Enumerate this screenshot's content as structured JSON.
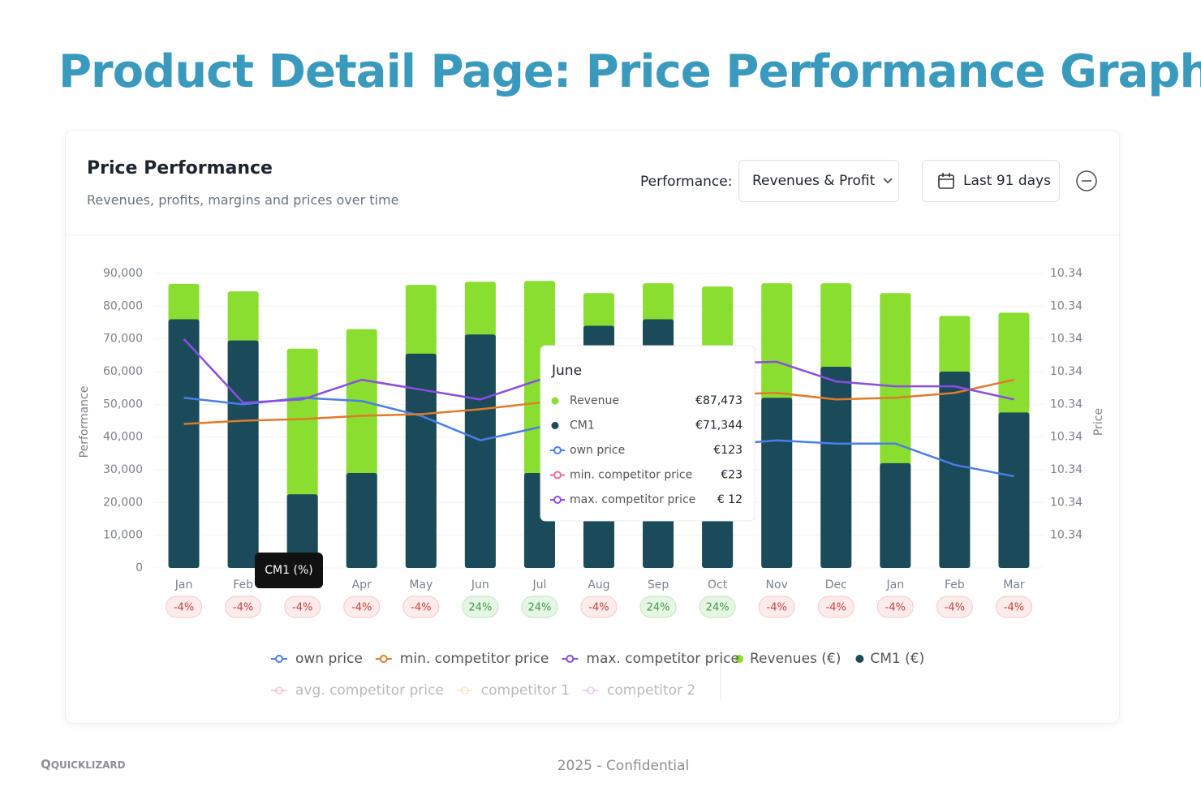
{
  "slide_title": "Product Detail Page: Price Performance Graph",
  "card": {
    "title": "Price Performance",
    "subtitle": "Revenues, profits, margins and prices over time",
    "performance_label": "Performance:",
    "performance_select": "Revenues & Profit",
    "date_range": "Last 91 days"
  },
  "footer": {
    "brand": "QUICKLIZARD",
    "note": "2025 - Confidential"
  },
  "chart_data": {
    "type": "combo",
    "ylabel": "Performance",
    "y2label": "Price",
    "categories": [
      "Jan",
      "Feb",
      "Mar",
      "Apr",
      "May",
      "Jun",
      "Jul",
      "Aug",
      "Sep",
      "Oct",
      "Nov",
      "Dec",
      "Jan",
      "Feb",
      "Mar"
    ],
    "ylim": [
      0,
      90000
    ],
    "yticks": [
      {
        "value": 0,
        "label": "0"
      },
      {
        "value": 10000,
        "label": "10,000"
      },
      {
        "value": 20000,
        "label": "20,000"
      },
      {
        "value": 30000,
        "label": "30,000"
      },
      {
        "value": 40000,
        "label": "40,000"
      },
      {
        "value": 50000,
        "label": "50,000"
      },
      {
        "value": 60000,
        "label": "60,000"
      },
      {
        "value": 70000,
        "label": "70,000"
      },
      {
        "value": 80000,
        "label": "80,000"
      },
      {
        "value": 90000,
        "label": "90,000"
      }
    ],
    "y2lim": [
      0,
      90000
    ],
    "y2ticks": [
      {
        "value": 10000,
        "label": "10.34"
      },
      {
        "value": 20000,
        "label": "10.34"
      },
      {
        "value": 30000,
        "label": "10.34"
      },
      {
        "value": 40000,
        "label": "10.34"
      },
      {
        "value": 50000,
        "label": "10.34"
      },
      {
        "value": 60000,
        "label": "10.34"
      },
      {
        "value": 70000,
        "label": "10.34"
      },
      {
        "value": 80000,
        "label": "10.34"
      },
      {
        "value": 90000,
        "label": "10.34"
      }
    ],
    "series": [
      {
        "name": "Revenues (€)",
        "type": "bar",
        "color": "#8ade2f",
        "values": [
          86800,
          84500,
          67000,
          73000,
          86500,
          87473,
          87700,
          84000,
          87000,
          86000,
          87000,
          87000,
          84000,
          77000,
          78000
        ]
      },
      {
        "name": "CM1 (€)",
        "type": "bar",
        "color": "#1b4a5a",
        "values": [
          76000,
          69500,
          22500,
          29000,
          65500,
          71344,
          29000,
          74000,
          76000,
          45000,
          52000,
          61500,
          32000,
          60000,
          47500
        ]
      },
      {
        "name": "own price",
        "type": "line",
        "axis": "y2",
        "color": "#4a7ee8",
        "values": [
          52000,
          50000,
          52000,
          51000,
          46500,
          39000,
          43000,
          42000,
          41000,
          37500,
          39000,
          38000,
          38000,
          31500,
          28000
        ]
      },
      {
        "name": "min. competitor price",
        "type": "line",
        "axis": "y2",
        "color": "#e07b2a",
        "values": [
          44000,
          45000,
          45500,
          46500,
          47000,
          48500,
          50500,
          51500,
          52000,
          53000,
          53500,
          51500,
          52000,
          53500,
          57500
        ]
      },
      {
        "name": "max. competitor price",
        "type": "line",
        "axis": "y2",
        "color": "#8a4ee0",
        "values": [
          70000,
          50500,
          51500,
          57500,
          54500,
          51500,
          57500,
          63000,
          63000,
          62500,
          63000,
          57000,
          55500,
          55500,
          51500
        ]
      }
    ],
    "legend_hidden": [
      {
        "name": "avg. competitor price",
        "color": "#e8a0c0"
      },
      {
        "name": "competitor 1",
        "color": "#f0d890"
      },
      {
        "name": "competitor 2",
        "color": "#d0a8f0"
      }
    ],
    "badges": {
      "values": [
        -4,
        -4,
        -4,
        -4,
        -4,
        24,
        24,
        -4,
        24,
        24,
        -4,
        -4,
        -4,
        -4,
        -4
      ],
      "value_labels": [
        "-4%",
        "-4%",
        "-4%",
        "-4%",
        "-4%",
        "24%",
        "24%",
        "-4%",
        "24%",
        "24%",
        "-4%",
        "-4%",
        "-4%",
        "-4%",
        "-4%"
      ]
    },
    "tooltip": {
      "title": "June",
      "rows": [
        {
          "label": "Revenue",
          "value": "€87,473",
          "color": "#8ade2f"
        },
        {
          "label": "CM1",
          "value": "€71,344",
          "color": "#1b4a5a"
        },
        {
          "label": "own price",
          "value": "€123",
          "color": "#4a7ee8"
        },
        {
          "label": "min. competitor price",
          "value": "€23",
          "color": "#e86a9a"
        },
        {
          "label": "max. competitor price",
          "value": "€ 12",
          "color": "#8a4ee0"
        }
      ]
    },
    "hover_label": "CM1 (%)"
  }
}
